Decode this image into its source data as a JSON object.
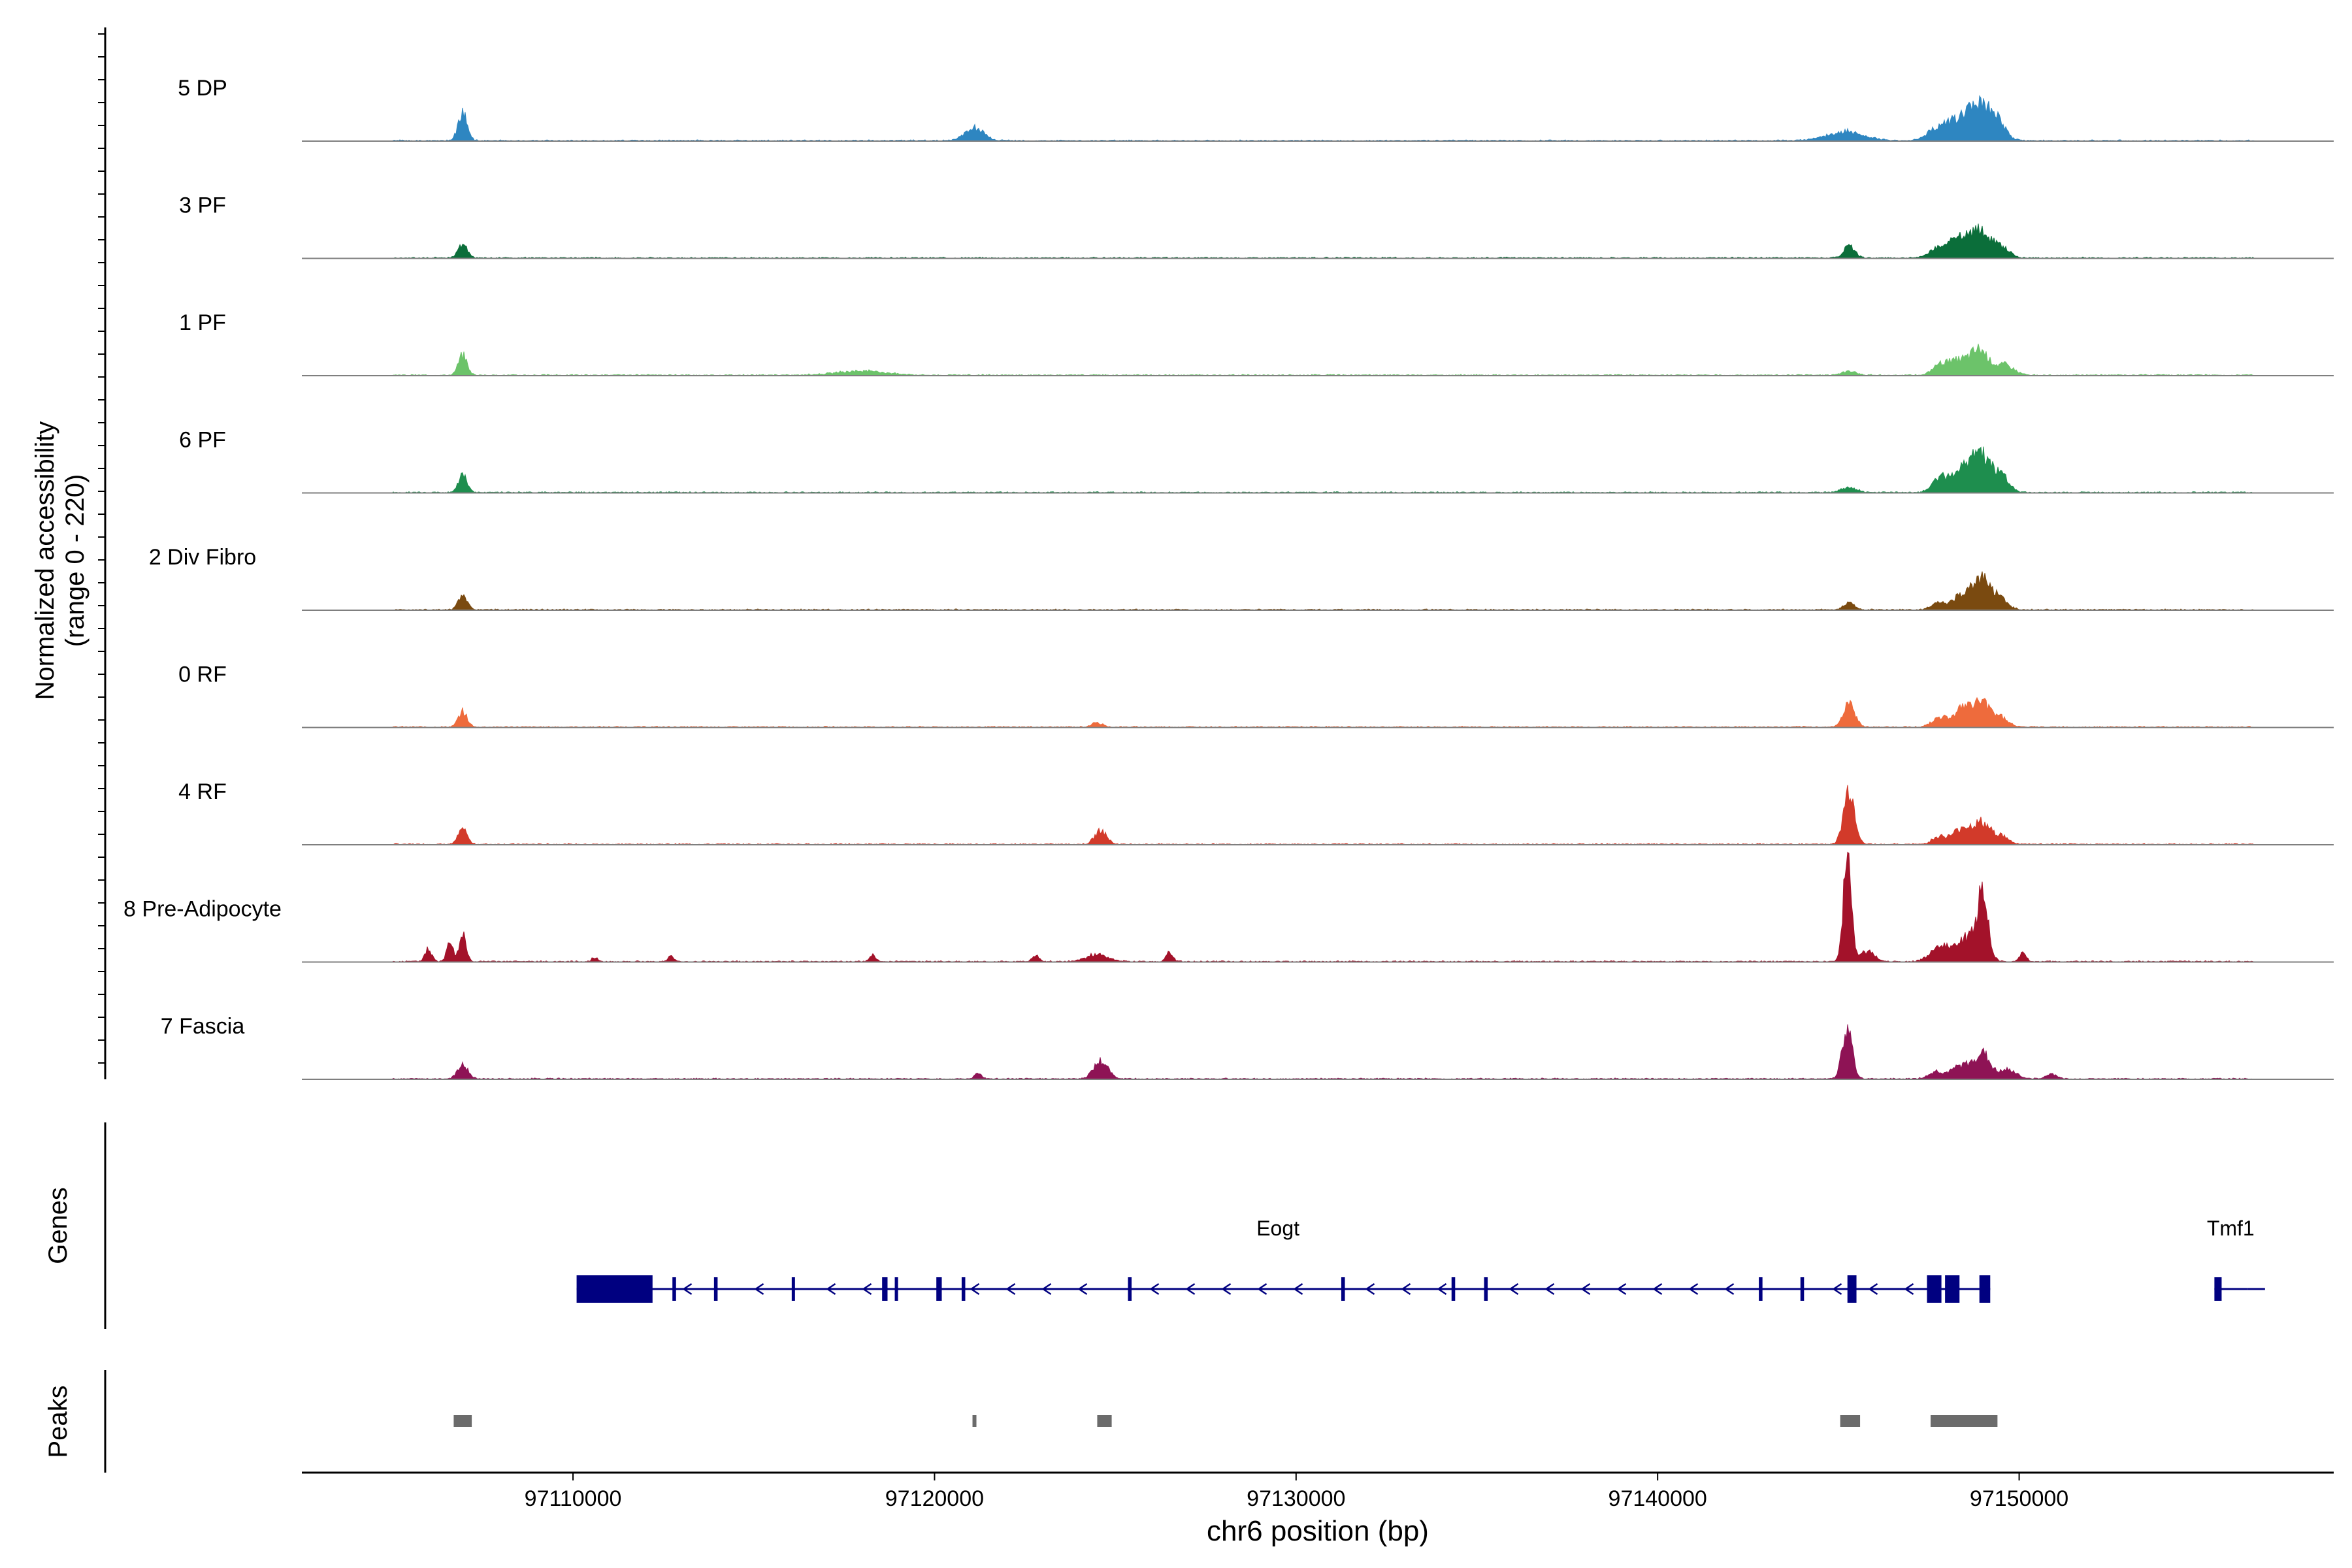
{
  "chart_data": {
    "type": "area",
    "title": "",
    "ylabel": "Normalized accessibility\n(range 0 - 220)",
    "xlabel": "chr6 position (bp)",
    "x_range": [
      97102500,
      97158700
    ],
    "y_range": [
      0,
      220
    ],
    "x_ticks": [
      97110000,
      97120000,
      97130000,
      97140000,
      97150000
    ],
    "tracks": [
      {
        "name": "5 DP",
        "color": "#2E86C1",
        "peaks": [
          [
            97106950,
            58,
            120
          ],
          [
            97121100,
            25,
            260
          ],
          [
            97145200,
            18,
            500
          ],
          [
            97147700,
            22,
            260
          ],
          [
            97148300,
            40,
            300
          ],
          [
            97148900,
            68,
            260
          ],
          [
            97149400,
            40,
            220
          ]
        ]
      },
      {
        "name": "3 PF",
        "color": "#0B6E3A",
        "peaks": [
          [
            97106950,
            28,
            120
          ],
          [
            97145300,
            22,
            150
          ],
          [
            97147800,
            18,
            260
          ],
          [
            97148400,
            38,
            300
          ],
          [
            97148950,
            45,
            260
          ],
          [
            97149500,
            22,
            220
          ]
        ]
      },
      {
        "name": "1 PF",
        "color": "#6CC36A",
        "peaks": [
          [
            97106950,
            40,
            120
          ],
          [
            97118000,
            8,
            700
          ],
          [
            97145300,
            8,
            200
          ],
          [
            97147800,
            20,
            200
          ],
          [
            97148300,
            28,
            250
          ],
          [
            97148900,
            50,
            250
          ],
          [
            97149600,
            20,
            250
          ]
        ]
      },
      {
        "name": "6 PF",
        "color": "#1E8E4E",
        "peaks": [
          [
            97106950,
            35,
            120
          ],
          [
            97145300,
            10,
            200
          ],
          [
            97147800,
            28,
            200
          ],
          [
            97148400,
            45,
            260
          ],
          [
            97148950,
            70,
            260
          ],
          [
            97149500,
            30,
            220
          ]
        ]
      },
      {
        "name": "2 Div Fibro",
        "color": "#7A4A10",
        "peaks": [
          [
            97106950,
            28,
            120
          ],
          [
            97145300,
            14,
            150
          ],
          [
            97147800,
            14,
            200
          ],
          [
            97148400,
            25,
            220
          ],
          [
            97148950,
            62,
            280
          ],
          [
            97149500,
            16,
            200
          ]
        ]
      },
      {
        "name": "0 RF",
        "color": "#EE6B3C",
        "peaks": [
          [
            97106950,
            30,
            120
          ],
          [
            97124500,
            8,
            150
          ],
          [
            97145300,
            45,
            160
          ],
          [
            97147800,
            20,
            200
          ],
          [
            97148400,
            35,
            220
          ],
          [
            97148950,
            50,
            250
          ],
          [
            97149500,
            18,
            200
          ]
        ]
      },
      {
        "name": "4 RF",
        "color": "#D23A2A",
        "peaks": [
          [
            97106950,
            30,
            120
          ],
          [
            97124600,
            28,
            160
          ],
          [
            97145300,
            110,
            150
          ],
          [
            97147800,
            15,
            200
          ],
          [
            97148400,
            30,
            220
          ],
          [
            97148950,
            42,
            250
          ],
          [
            97149500,
            15,
            200
          ]
        ]
      },
      {
        "name": "8 Pre-Adipocyte",
        "color": "#A3122A",
        "peaks": [
          [
            97106000,
            25,
            90
          ],
          [
            97106600,
            40,
            90
          ],
          [
            97106950,
            55,
            90
          ],
          [
            97110600,
            8,
            80
          ],
          [
            97112700,
            10,
            80
          ],
          [
            97118300,
            12,
            90
          ],
          [
            97122800,
            12,
            90
          ],
          [
            97124500,
            14,
            300
          ],
          [
            97126500,
            18,
            90
          ],
          [
            97145250,
            210,
            110
          ],
          [
            97145800,
            20,
            200
          ],
          [
            97147800,
            30,
            250
          ],
          [
            97148500,
            45,
            260
          ],
          [
            97148980,
            120,
            160
          ],
          [
            97150100,
            18,
            90
          ]
        ]
      },
      {
        "name": "7 Fascia",
        "color": "#8E1355",
        "peaks": [
          [
            97106950,
            28,
            140
          ],
          [
            97121200,
            12,
            90
          ],
          [
            97124600,
            35,
            200
          ],
          [
            97145250,
            100,
            140
          ],
          [
            97147700,
            14,
            200
          ],
          [
            97148400,
            26,
            260
          ],
          [
            97148980,
            50,
            220
          ],
          [
            97149700,
            18,
            220
          ],
          [
            97150900,
            10,
            150
          ]
        ]
      }
    ],
    "genes": [
      {
        "name": "Eogt",
        "strand": "-",
        "start": 97110100,
        "end": 97149200,
        "exons": [
          [
            97110100,
            97112200
          ],
          [
            97112750,
            97112850
          ],
          [
            97113900,
            97114000
          ],
          [
            97116050,
            97116100
          ],
          [
            97118550,
            97118700
          ],
          [
            97118900,
            97118950
          ],
          [
            97120050,
            97120200
          ],
          [
            97120750,
            97120850
          ],
          [
            97125350,
            97125450
          ],
          [
            97131250,
            97131350
          ],
          [
            97134300,
            97134400
          ],
          [
            97135200,
            97135300
          ],
          [
            97142800,
            97142900
          ],
          [
            97143950,
            97144050
          ],
          [
            97145250,
            97145500
          ],
          [
            97147450,
            97147850
          ],
          [
            97147950,
            97148350
          ],
          [
            97148900,
            97149200
          ]
        ]
      },
      {
        "name": "Tmf1",
        "strand": "+",
        "start": 97155400,
        "end": 97156300,
        "exons": [
          [
            97155400,
            97155600
          ]
        ]
      }
    ],
    "peaks": [
      [
        97106700,
        97107200
      ],
      [
        97121050,
        97121150
      ],
      [
        97124500,
        97124900
      ],
      [
        97145050,
        97145600
      ],
      [
        97147550,
        97149400
      ]
    ]
  },
  "labels": {
    "y_axis_line1": "Normalized accessibility",
    "y_axis_line2": "(range 0 - 220)",
    "genes_panel": "Genes",
    "peaks_panel": "Peaks",
    "x_axis": "chr6 position (bp)"
  },
  "colors": {
    "gene": "#000080",
    "peak": "#6B6B6B",
    "baseline": "#7F7F7F",
    "axis": "#000000"
  }
}
